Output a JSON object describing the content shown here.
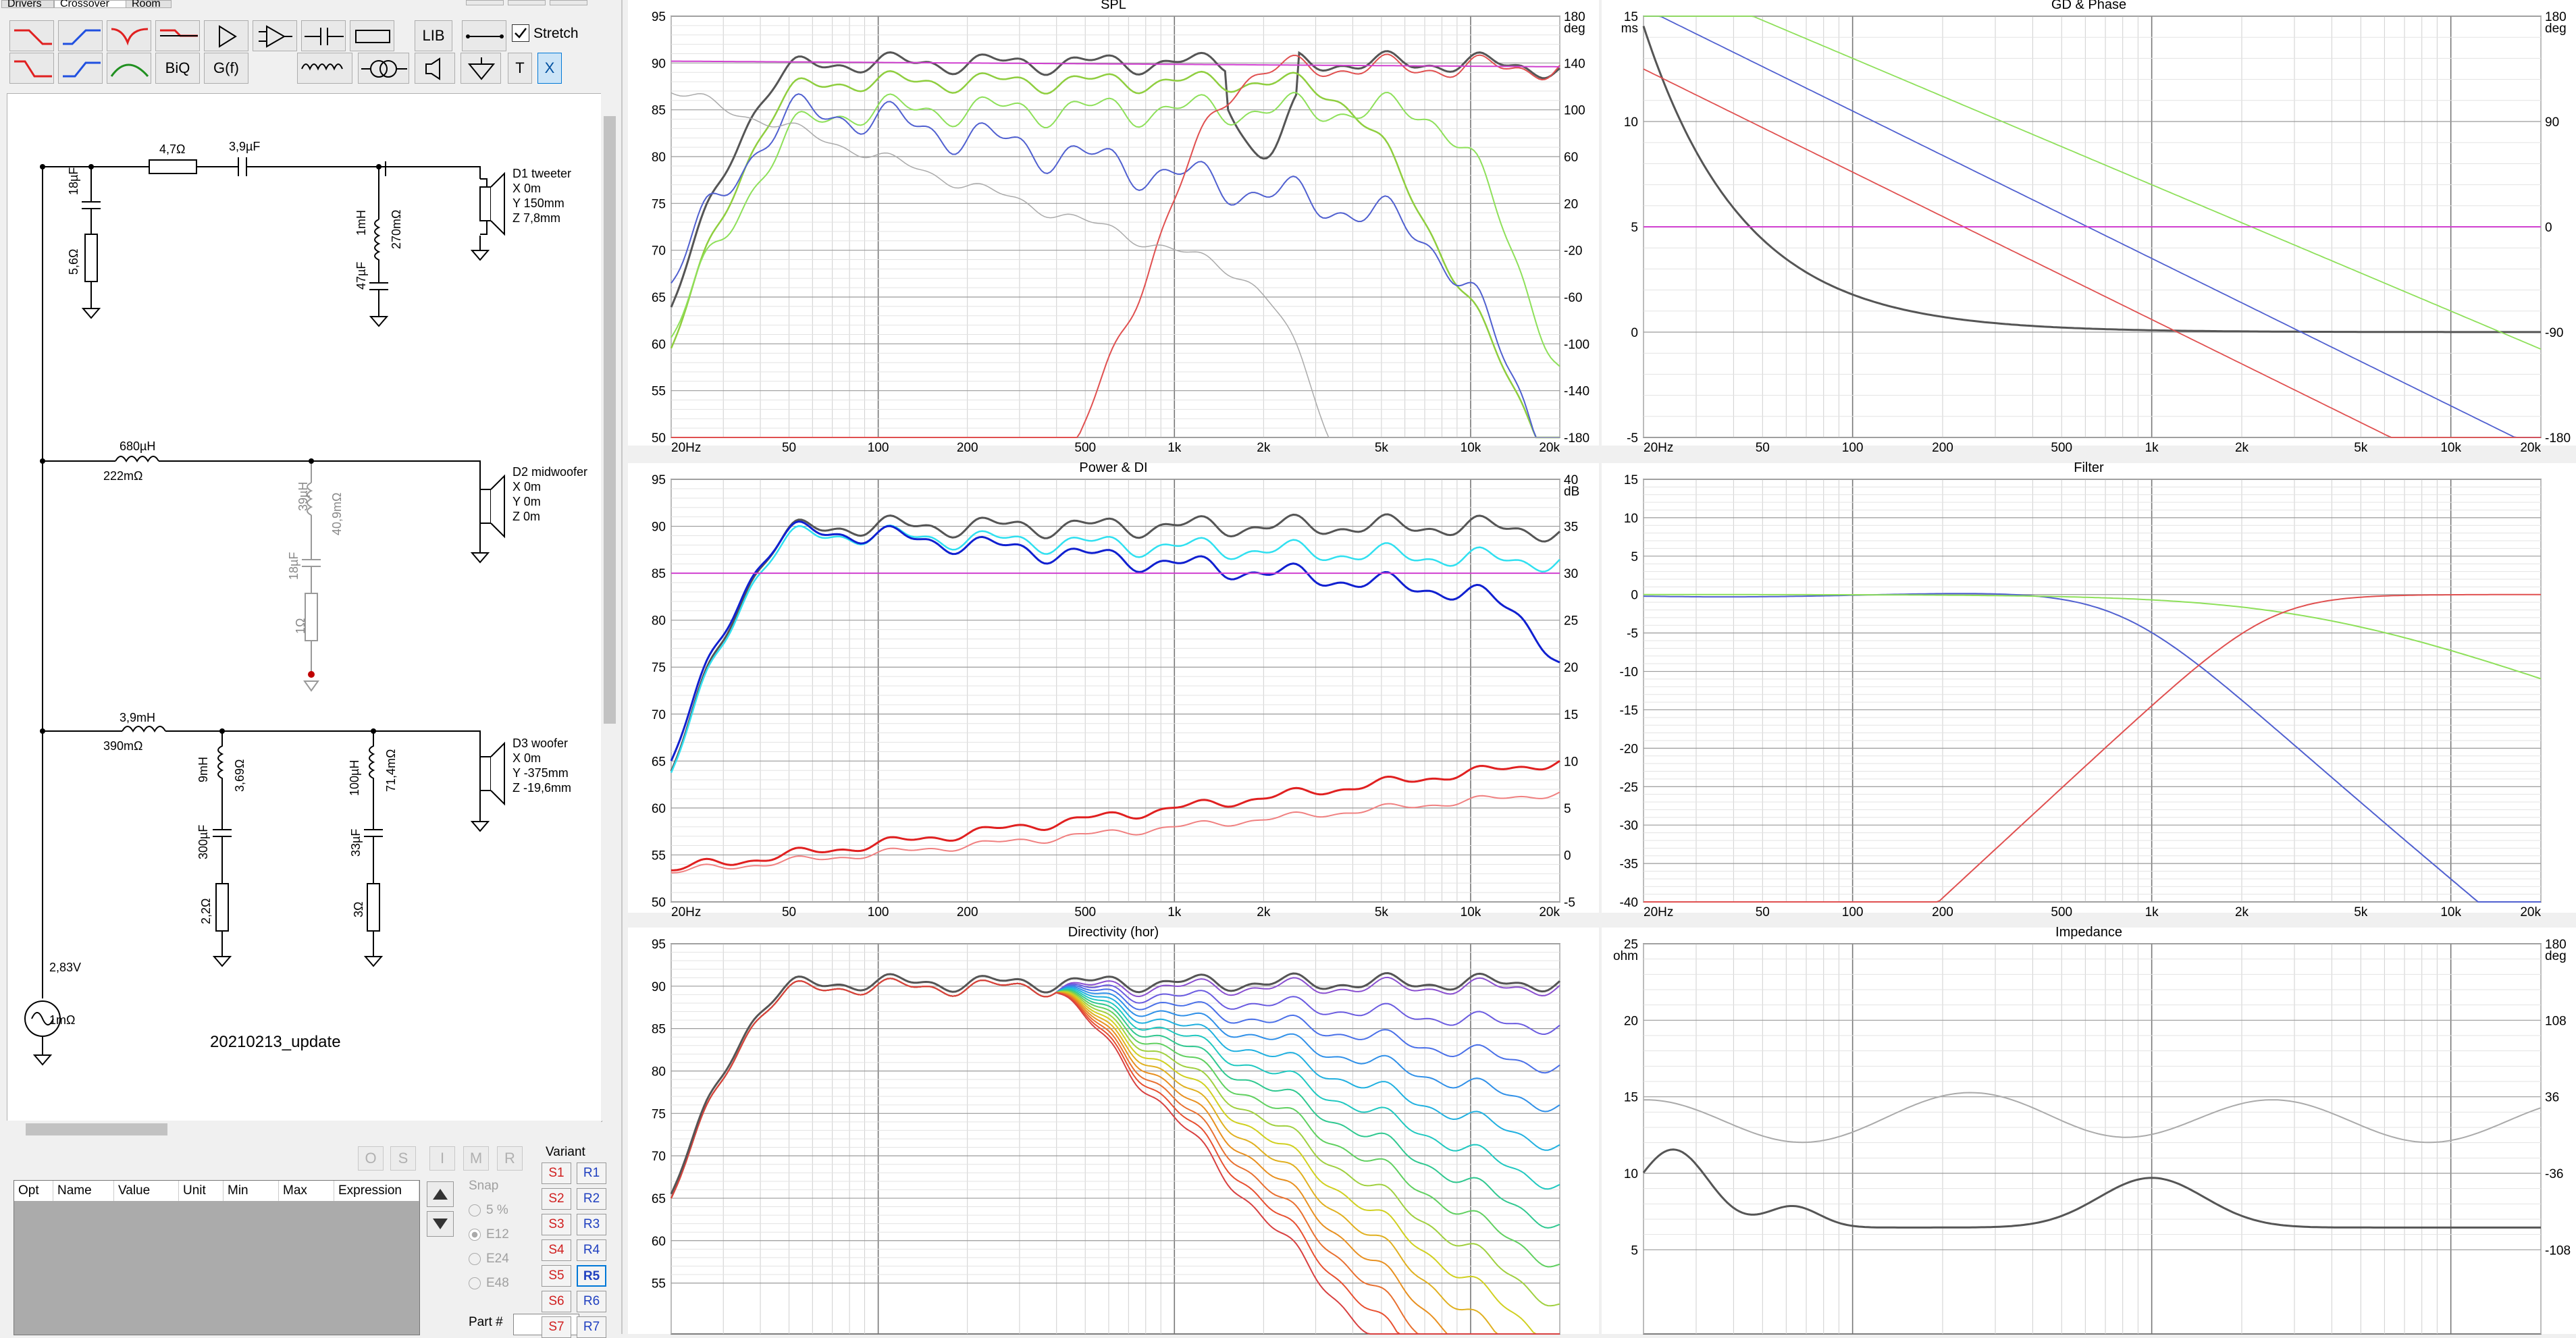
{
  "tabs": [
    "Drivers",
    "Crossover",
    "Room"
  ],
  "toolbar": {
    "lib_label": "LIB",
    "stretch_label": "Stretch",
    "biq_label": "BiQ",
    "gf_label": "G(f)",
    "t_label": "T",
    "x_label": "X"
  },
  "schematic": {
    "labels": {
      "r47": "4,7Ω",
      "c39": "3,9µF",
      "c18": "18µF",
      "r56": "5,6Ω",
      "l1mh": "1mH",
      "l1mh_r": "270mΩ",
      "c47": "47µF",
      "d1_name": "D1 tweeter",
      "d1_x": "X 0m",
      "d1_y": "Y 150mm",
      "d1_z": "Z 7,8mm",
      "l680": "680µH",
      "l680_r": "222mΩ",
      "l39": "39µH",
      "l39_r": "40,9mΩ",
      "c18b": "18µF",
      "r1": "1Ω",
      "d2_name": "D2 midwoofer",
      "d2_x": "X 0m",
      "d2_y": "Y 0m",
      "d2_z": "Z 0m",
      "l39mh": "3,9mH",
      "l39mh_r": "390mΩ",
      "l9mh": "9mH",
      "l9mh_r": "3,69Ω",
      "c300": "300µF",
      "r22": "2,2Ω",
      "l100": "100µH",
      "l100_r": "71,4mΩ",
      "c33": "33µF",
      "r3": "3Ω",
      "d3_name": "D3 woofer",
      "d3_x": "X 0m",
      "d3_y": "Y -375mm",
      "d3_z": "Z -19,6mm",
      "source_v": "2,83V",
      "source_r": "1mΩ",
      "project_name": "20210213_update"
    }
  },
  "opt_table": {
    "headers": [
      "Opt",
      "Name",
      "Value",
      "Unit",
      "Min",
      "Max",
      "Expression"
    ]
  },
  "opt_buttons": [
    "O",
    "S",
    "I",
    "M",
    "R"
  ],
  "snap": {
    "label": "Snap",
    "options": [
      "5 %",
      "E12",
      "E24",
      "E48"
    ],
    "selected": "E12"
  },
  "variant": {
    "label": "Variant",
    "s": [
      "S1",
      "S2",
      "S3",
      "S4",
      "S5",
      "S6",
      "S7"
    ],
    "r": [
      "R1",
      "R2",
      "R3",
      "R4",
      "R5",
      "R6",
      "R7"
    ],
    "selected": "R5"
  },
  "part_label": "Part #",
  "charts": {
    "spl": {
      "title": "SPL",
      "y_left": [
        "95",
        "90",
        "85",
        "80",
        "75",
        "70",
        "65",
        "60",
        "55",
        "50"
      ],
      "y_right": [
        "180",
        "140",
        "100",
        "60",
        "20",
        "-20",
        "-60",
        "-100",
        "-140",
        "-180"
      ],
      "y_right_unit": "deg"
    },
    "gd": {
      "title": "GD & Phase",
      "y_left_unit": "ms",
      "y_left": [
        "15",
        "10",
        "5",
        "0",
        "-5"
      ],
      "y_right": [
        "180",
        "90",
        "0",
        "-90",
        "-180"
      ],
      "y_right_unit": "deg"
    },
    "power": {
      "title": "Power & DI",
      "y_left": [
        "95",
        "90",
        "85",
        "80",
        "75",
        "70",
        "65",
        "60",
        "55",
        "50"
      ],
      "y_right": [
        "40",
        "35",
        "30",
        "25",
        "20",
        "15",
        "10",
        "5",
        "0",
        "-5"
      ],
      "y_right_unit": "dB"
    },
    "filter": {
      "title": "Filter",
      "y_left": [
        "15",
        "10",
        "5",
        "0",
        "-5",
        "-10",
        "-15",
        "-20",
        "-25",
        "-30",
        "-35",
        "-40"
      ]
    },
    "directivity": {
      "title": "Directivity (hor)",
      "y_left": [
        "95",
        "90",
        "85",
        "80",
        "75",
        "70",
        "65",
        "60",
        "55"
      ]
    },
    "impedance": {
      "title": "Impedance",
      "y_left_unit": "ohm",
      "y_left": [
        "25",
        "20",
        "15",
        "10",
        "5"
      ],
      "y_right": [
        "180",
        "108",
        "36",
        "-36",
        "-108"
      ],
      "y_right_unit": "deg"
    },
    "x_ticks": [
      "20Hz",
      "50",
      "100",
      "200",
      "500",
      "1k",
      "2k",
      "5k",
      "10k",
      "20k"
    ]
  }
}
